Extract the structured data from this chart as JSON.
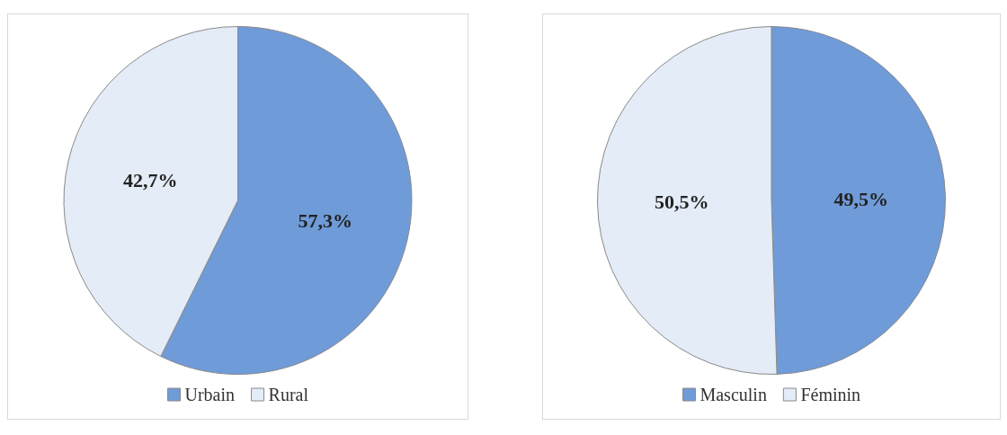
{
  "chart_data": [
    {
      "type": "pie",
      "categories": [
        "Urbain",
        "Rural"
      ],
      "values": [
        57.3,
        42.7
      ],
      "colors": [
        "#6f9bd8",
        "#e3ecf7"
      ],
      "value_labels": [
        "57,3%",
        "42,7%"
      ],
      "legend": "bottom"
    },
    {
      "type": "pie",
      "categories": [
        "Masculin",
        "Féminin"
      ],
      "values": [
        49.5,
        50.5
      ],
      "colors": [
        "#6f9bd8",
        "#e3ecf7"
      ],
      "value_labels": [
        "49,5%",
        "50,5%"
      ],
      "legend": "bottom"
    }
  ]
}
